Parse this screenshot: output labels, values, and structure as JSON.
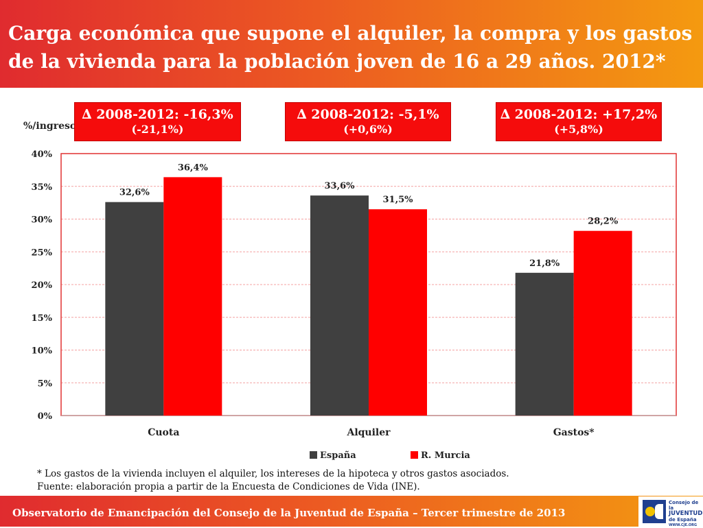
{
  "header": {
    "title_line1": "Carga económica que supone el alquiler, la compra y los gastos",
    "title_line2": "de la vivienda para la población joven de 16 a 29 años. 2012*",
    "color_start": "#e02b2f",
    "color_end": "#f49a10"
  },
  "deltas": [
    {
      "line1": "∆ 2008-2012: -16,3%",
      "line2": "(-21,1%)"
    },
    {
      "line1": "∆ 2008-2012: -5,1%",
      "line2": "(+0,6%)"
    },
    {
      "line1": "∆ 2008-2012: +17,2%",
      "line2": "(+5,8%)"
    }
  ],
  "chart_data": {
    "type": "bar",
    "title": "",
    "ylabel": "%/ingresos",
    "xlabel": "",
    "categories": [
      "Cuota",
      "Alquiler",
      "Gastos*"
    ],
    "series": [
      {
        "name": "España",
        "values": [
          32.6,
          33.6,
          21.8
        ],
        "labels": [
          "32,6%",
          "33,6%",
          "21,8%"
        ],
        "color": "#404040"
      },
      {
        "name": "R. Murcia",
        "values": [
          36.4,
          31.5,
          28.2
        ],
        "labels": [
          "36,4%",
          "31,5%",
          "28,2%"
        ],
        "color": "#ff0000"
      }
    ],
    "ylim": [
      0,
      40
    ],
    "yticks": [
      0,
      5,
      10,
      15,
      20,
      25,
      30,
      35,
      40
    ],
    "ytick_labels": [
      "0%",
      "5%",
      "10%",
      "15%",
      "20%",
      "25%",
      "30%",
      "35%",
      "40%"
    ],
    "grid": true,
    "grid_color": "#f4a0a0",
    "frame_color": "#e03030",
    "legend_position": "bottom"
  },
  "notes": {
    "line1": "* Los gastos de la vivienda incluyen el alquiler, los intereses de la hipoteca y otros gastos asociados.",
    "line2": "Fuente: elaboración propia a partir de la Encuesta de Condiciones de Vida (INE)."
  },
  "footer": {
    "text": "Observatorio de Emancipación del Consejo de la Juventud de España – Tercer trimestre de 2013",
    "logo_line1": "Consejo de la",
    "logo_line2": "JUVENTUD",
    "logo_line3": "de España",
    "logo_url": "WWW.CJE.ORG"
  }
}
